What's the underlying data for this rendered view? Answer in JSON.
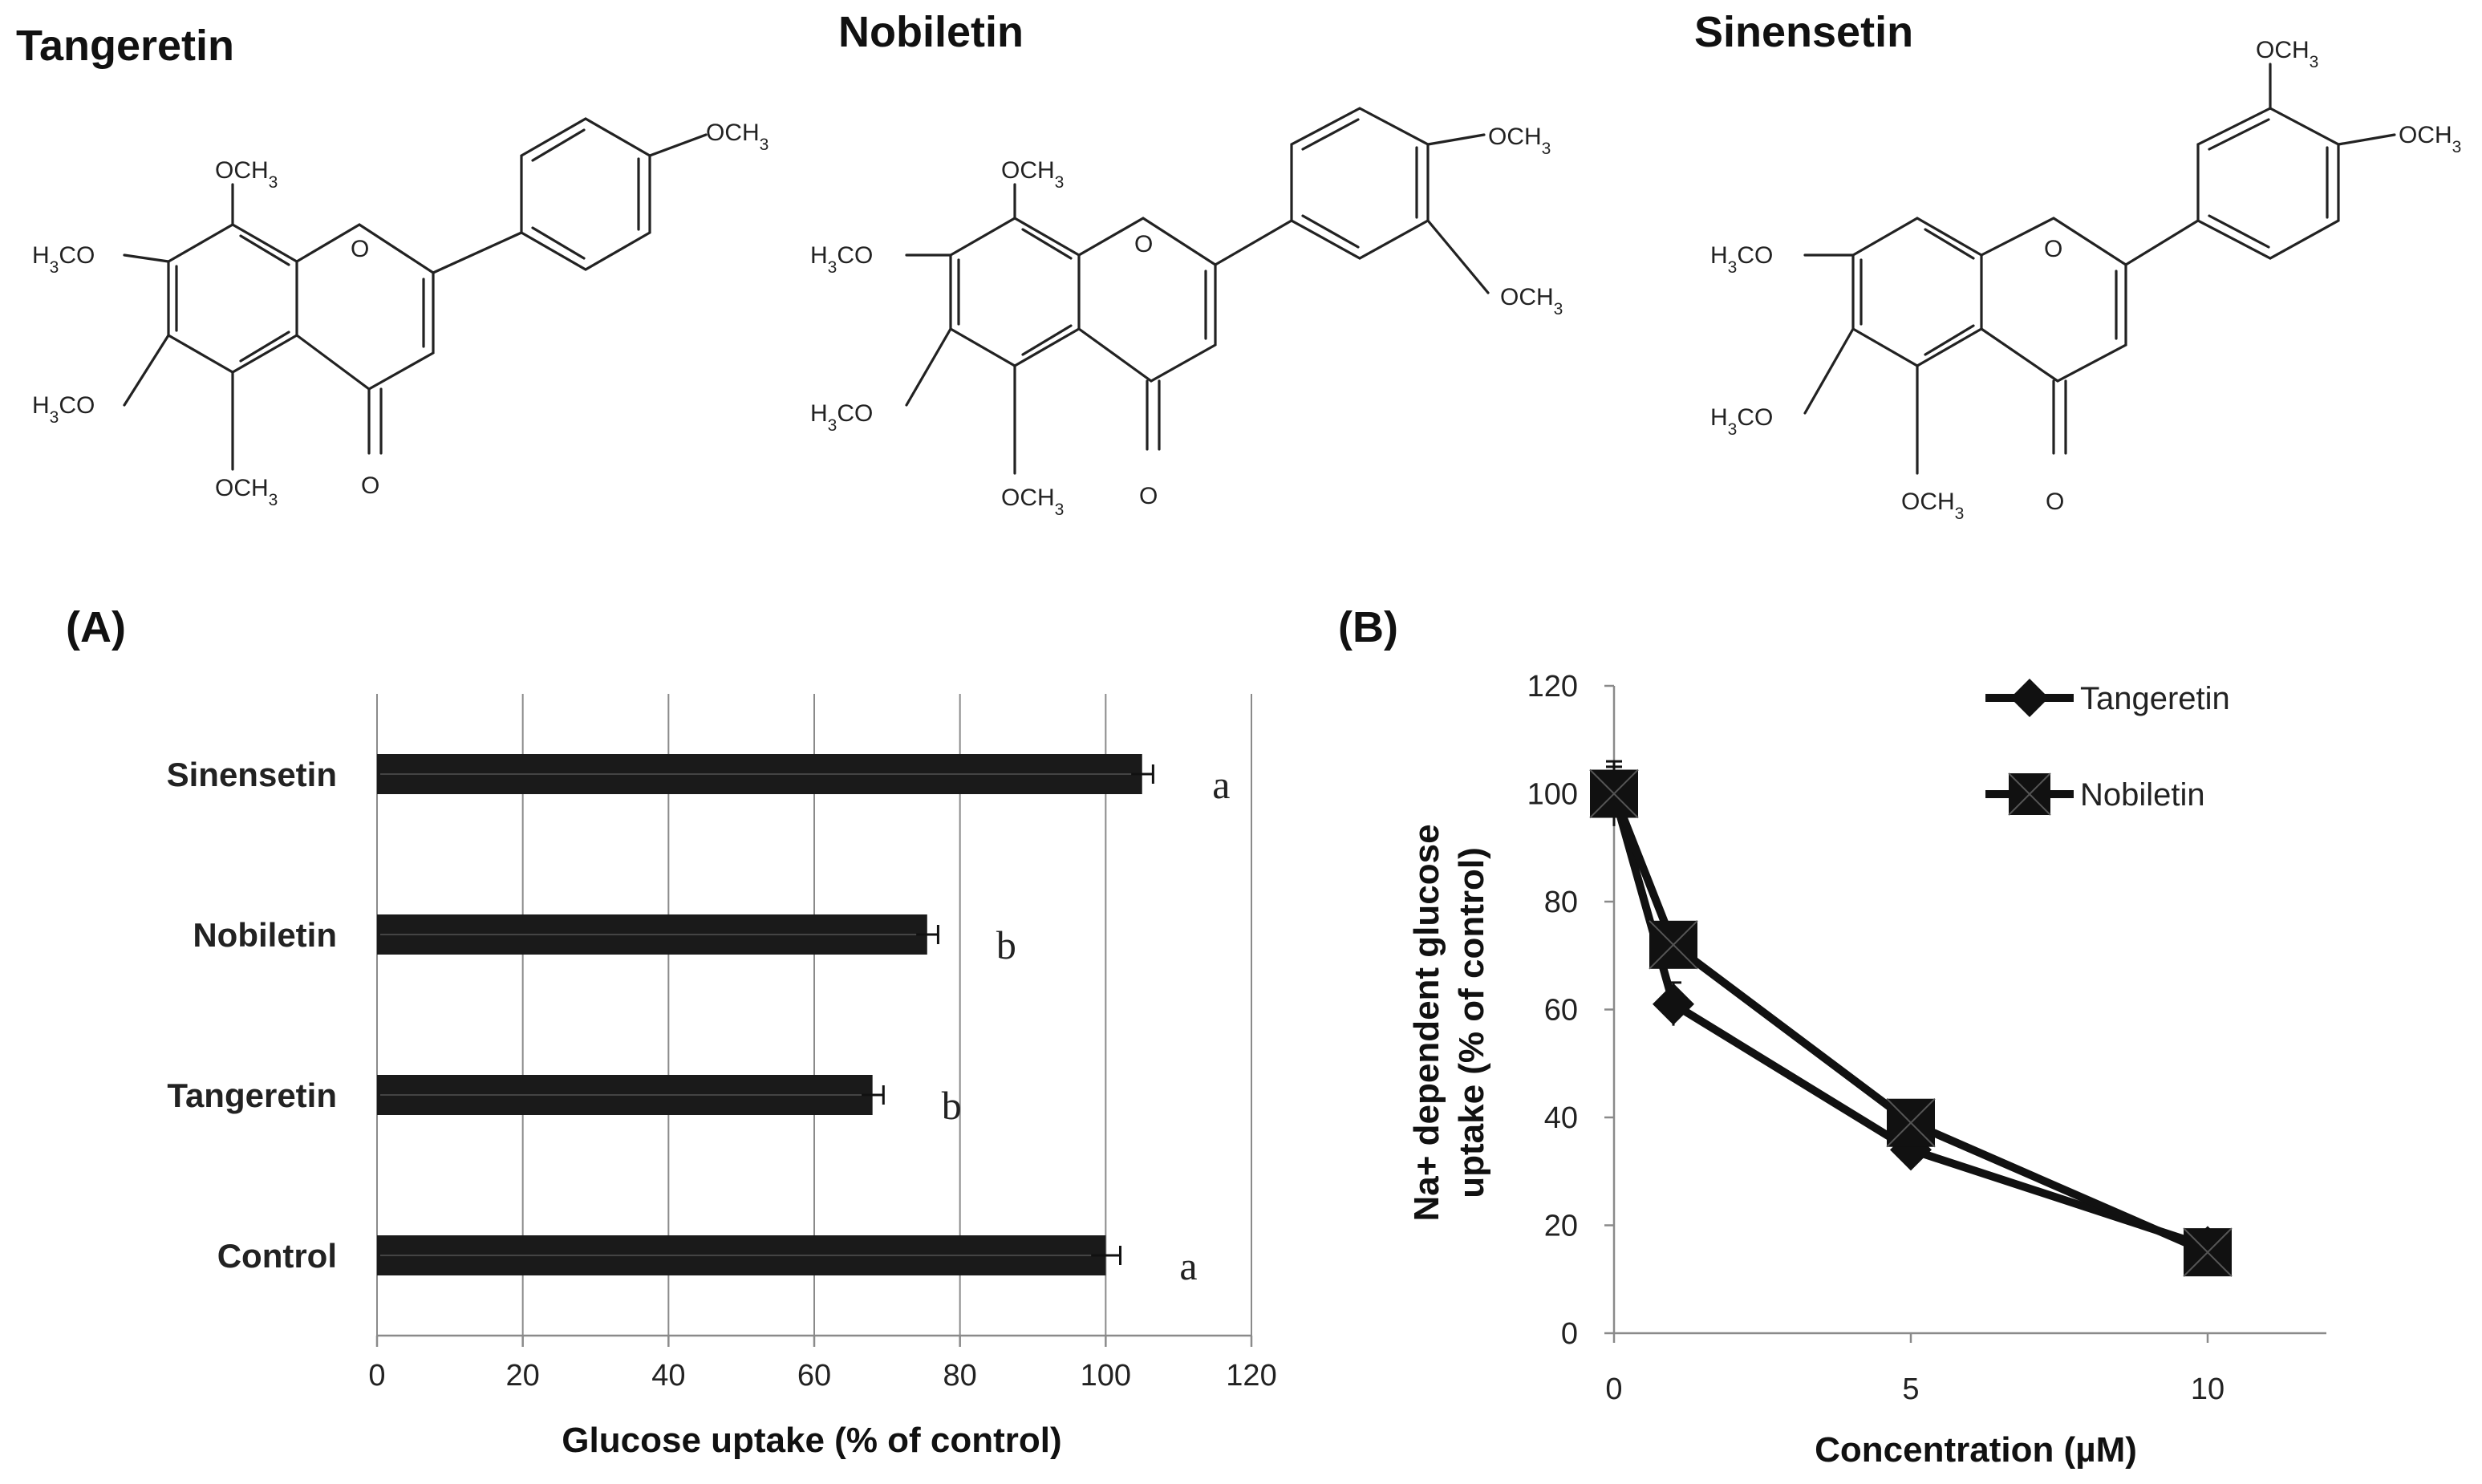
{
  "structures": [
    {
      "name": "Tangeretin",
      "labels": [
        "OCH3",
        "OCH3",
        "H3CO",
        "H3CO",
        "OCH3",
        "O",
        "O"
      ]
    },
    {
      "name": "Nobiletin",
      "labels": [
        "OCH3",
        "OCH3",
        "OCH3",
        "H3CO",
        "H3CO",
        "OCH3",
        "O",
        "O"
      ]
    },
    {
      "name": "Sinensetin",
      "labels": [
        "OCH3",
        "OCH3",
        "H3CO",
        "H3CO",
        "OCH3",
        "O",
        "O"
      ]
    }
  ],
  "chart_data": [
    {
      "panel": "(A)",
      "type": "bar",
      "orientation": "horizontal",
      "categories": [
        "Sinensetin",
        "Nobiletin",
        "Tangeretin",
        "Control"
      ],
      "values": [
        105,
        75.5,
        68,
        100
      ],
      "errors": [
        1.5,
        1.5,
        1.5,
        2
      ],
      "significance": [
        "a",
        "b",
        "b",
        "a"
      ],
      "xlabel": "Glucose uptake (% of control)",
      "ylabel": "",
      "xlim": [
        0,
        120
      ],
      "xticks": [
        "0",
        "20",
        "40",
        "60",
        "80",
        "100",
        "120"
      ],
      "grid": true,
      "bar_color": "#1a1a1a"
    },
    {
      "panel": "(B)",
      "type": "line",
      "x": [
        0,
        1,
        5,
        10
      ],
      "xticks": [
        "0",
        "5",
        "10"
      ],
      "xtick_values": [
        0,
        5,
        10
      ],
      "xlim": [
        0,
        12
      ],
      "ylim": [
        0,
        120
      ],
      "yticks": [
        "0",
        "20",
        "40",
        "60",
        "80",
        "100",
        "120"
      ],
      "xlabel": "Concentration (µM)",
      "ylabel_line1": "Na+ dependent glucose",
      "ylabel_line2": "uptake (% of control)",
      "legend_position": "top-right",
      "series": [
        {
          "name": "Tangeretin",
          "marker": "diamond",
          "values": [
            100,
            61,
            34,
            16
          ],
          "errors": [
            6,
            4,
            2,
            1.5
          ]
        },
        {
          "name": "Nobiletin",
          "marker": "square",
          "values": [
            100,
            72,
            39,
            15
          ],
          "errors": [
            5,
            3,
            2,
            1.5
          ]
        }
      ],
      "line_color": "#111111"
    }
  ]
}
